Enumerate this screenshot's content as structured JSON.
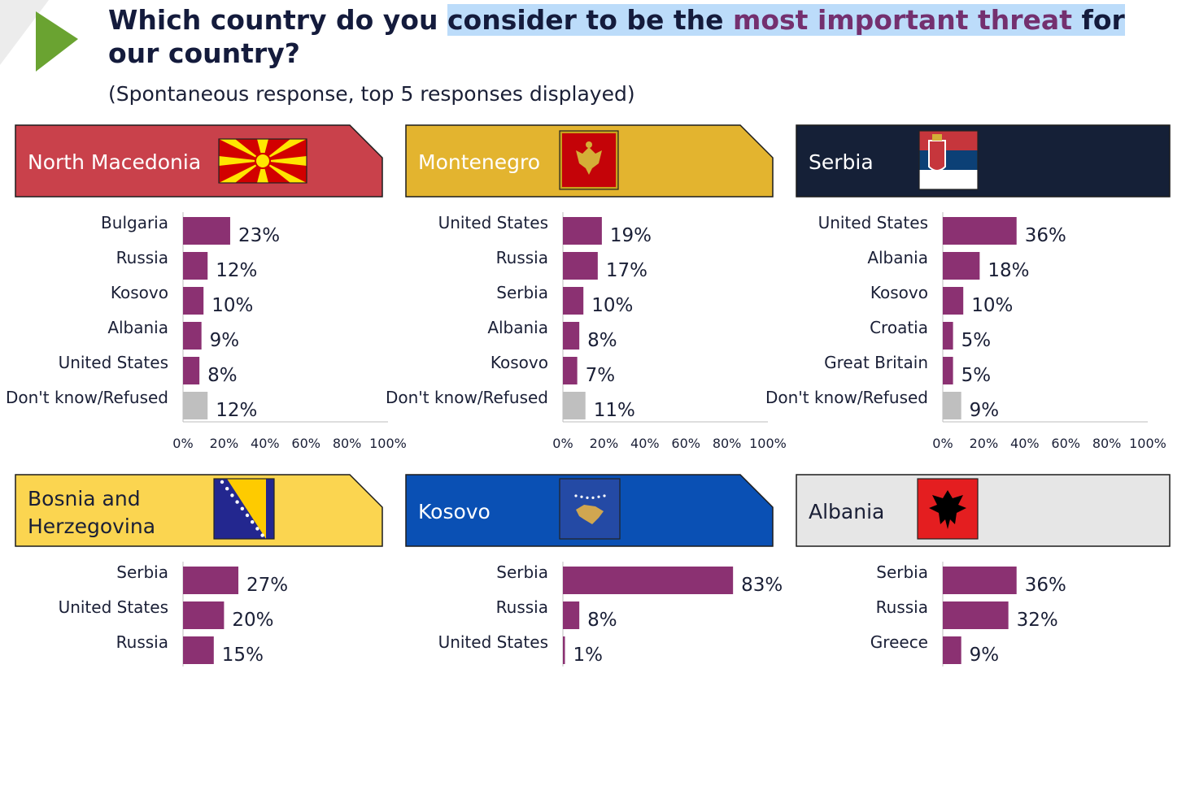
{
  "header": {
    "question_part1": "Which country do you ",
    "question_highlight1": "consider to be the ",
    "question_emphasis": "most important threat",
    "question_highlight2": " for",
    "question_part2": " our country?",
    "subtitle": "(Spontaneous response, top 5 responses displayed)"
  },
  "colors": {
    "bar_main": "#8b3172",
    "bar_dk": "#bfbfbf",
    "arrow": "#6aa331",
    "question_emphasis": "#74306f",
    "highlight": "#bcdcfa"
  },
  "panels": [
    {
      "name": "North Macedonia",
      "banner_color": "#c9414b",
      "text_color": "#ffffff",
      "flag": "north-macedonia-flag"
    },
    {
      "name": "Montenegro",
      "banner_color": "#e3b42f",
      "text_color": "#ffffff",
      "flag": "montenegro-flag"
    },
    {
      "name": "Serbia",
      "banner_color": "#152037",
      "text_color": "#ffffff",
      "flag": "serbia-flag"
    },
    {
      "name": "Bosnia and Herzegovina",
      "name_lines": [
        "Bosnia and",
        "Herzegovina"
      ],
      "banner_color": "#fbd550",
      "text_color": "#1a1f36",
      "flag": "bosnia-flag"
    },
    {
      "name": "Kosovo",
      "banner_color": "#0a50b4",
      "text_color": "#ffffff",
      "flag": "kosovo-flag"
    },
    {
      "name": "Albania",
      "banner_color": "#e6e6e6",
      "text_color": "#1a1f36",
      "flag": "albania-flag"
    }
  ],
  "chart_data": [
    {
      "type": "bar",
      "orientation": "horizontal",
      "panel": "North Macedonia",
      "categories": [
        "Bulgaria",
        "Russia",
        "Kosovo",
        "Albania",
        "United States",
        "Don't know/Refused"
      ],
      "values": [
        23,
        12,
        10,
        9,
        8,
        12
      ],
      "labels": [
        "23%",
        "12%",
        "10%",
        "9%",
        "8%",
        "12%"
      ],
      "xlim": [
        0,
        100
      ],
      "ticks": [
        "0%",
        "20%",
        "40%",
        "60%",
        "80%",
        "100%"
      ]
    },
    {
      "type": "bar",
      "orientation": "horizontal",
      "panel": "Montenegro",
      "categories": [
        "United States",
        "Russia",
        "Serbia",
        "Albania",
        "Kosovo",
        "Don't know/Refused"
      ],
      "values": [
        19,
        17,
        10,
        8,
        7,
        11
      ],
      "labels": [
        "19%",
        "17%",
        "10%",
        "8%",
        "7%",
        "11%"
      ],
      "xlim": [
        0,
        100
      ],
      "ticks": [
        "0%",
        "20%",
        "40%",
        "60%",
        "80%",
        "100%"
      ]
    },
    {
      "type": "bar",
      "orientation": "horizontal",
      "panel": "Serbia",
      "categories": [
        "United States",
        "Albania",
        "Kosovo",
        "Croatia",
        "Great Britain",
        "Don't know/Refused"
      ],
      "values": [
        36,
        18,
        10,
        5,
        5,
        9
      ],
      "labels": [
        "36%",
        "18%",
        "10%",
        "5%",
        "5%",
        "9%"
      ],
      "xlim": [
        0,
        100
      ],
      "ticks": [
        "0%",
        "20%",
        "40%",
        "60%",
        "80%",
        "100%"
      ]
    },
    {
      "type": "bar",
      "orientation": "horizontal",
      "panel": "Bosnia and Herzegovina",
      "categories": [
        "Serbia",
        "United States",
        "Russia"
      ],
      "values": [
        27,
        20,
        15
      ],
      "labels": [
        "27%",
        "20%",
        "15%"
      ],
      "xlim": [
        0,
        100
      ]
    },
    {
      "type": "bar",
      "orientation": "horizontal",
      "panel": "Kosovo",
      "categories": [
        "Serbia",
        "Russia",
        "United States"
      ],
      "values": [
        83,
        8,
        1
      ],
      "labels": [
        "83%",
        "8%",
        "1%"
      ],
      "xlim": [
        0,
        100
      ]
    },
    {
      "type": "bar",
      "orientation": "horizontal",
      "panel": "Albania",
      "categories": [
        "Serbia",
        "Russia",
        "Greece"
      ],
      "values": [
        36,
        32,
        9
      ],
      "labels": [
        "36%",
        "32%",
        "9%"
      ],
      "xlim": [
        0,
        100
      ]
    }
  ]
}
